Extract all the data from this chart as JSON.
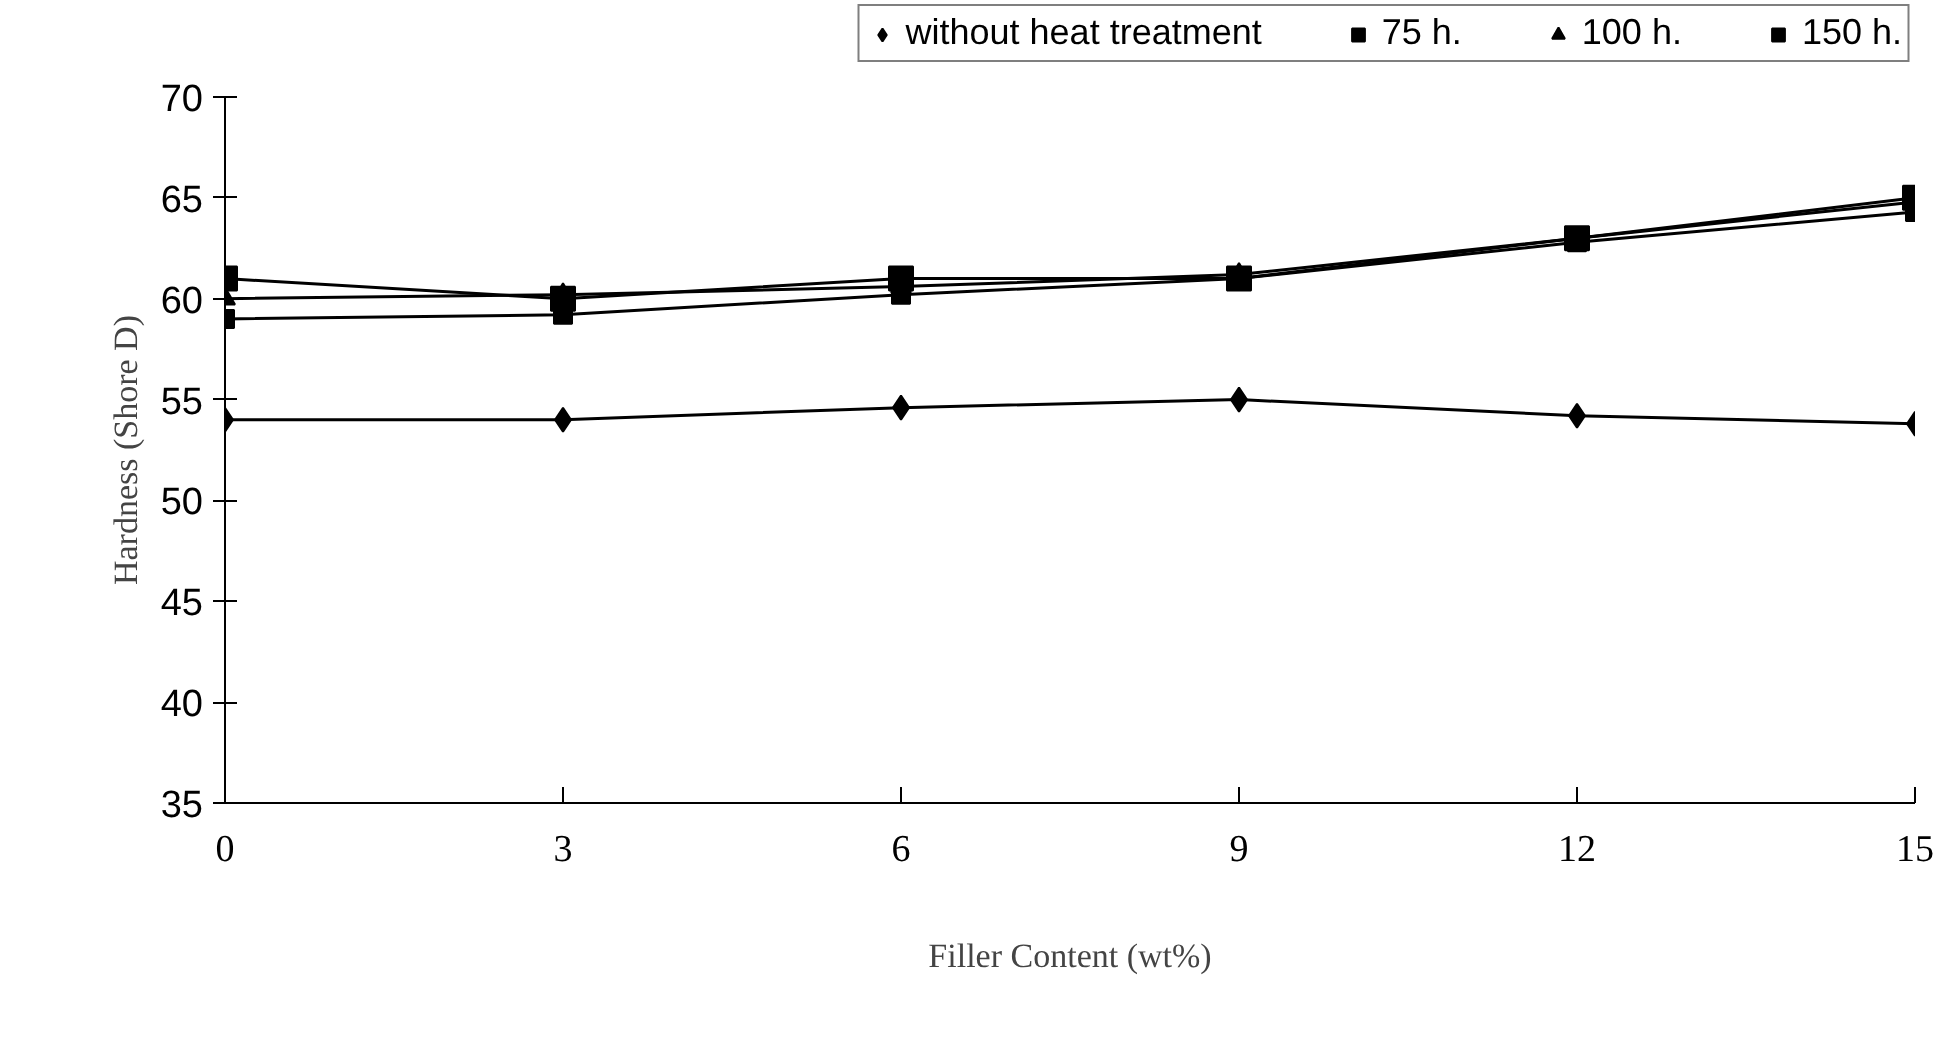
{
  "chart_data": {
    "type": "line",
    "xlabel": "Filler Content (wt%)",
    "ylabel": "Hardness (Shore D)",
    "x": [
      0,
      3,
      6,
      9,
      12,
      15
    ],
    "series": [
      {
        "name": "without heat treatment",
        "color": "#000000",
        "marker": "diamond",
        "values": [
          54,
          54,
          54.6,
          55,
          54.2,
          53.8
        ]
      },
      {
        "name": "75 h.",
        "color": "#000000",
        "marker": "square",
        "values": [
          59,
          59.2,
          60.2,
          61,
          62.8,
          64.3
        ]
      },
      {
        "name": "100 h.",
        "color": "#000000",
        "marker": "triangle",
        "values": [
          60,
          60.2,
          60.6,
          61.2,
          63,
          64.8
        ]
      },
      {
        "name": "150 h.",
        "color": "#000000",
        "marker": "square",
        "values": [
          61,
          60,
          61,
          61,
          63,
          65
        ]
      }
    ],
    "xlim": [
      0,
      15
    ],
    "ylim": [
      35,
      70
    ],
    "xticks": [
      0,
      3,
      6,
      9,
      12,
      15
    ],
    "yticks": [
      35,
      40,
      45,
      50,
      55,
      60,
      65,
      70
    ],
    "grid": false,
    "legend": "top right"
  }
}
